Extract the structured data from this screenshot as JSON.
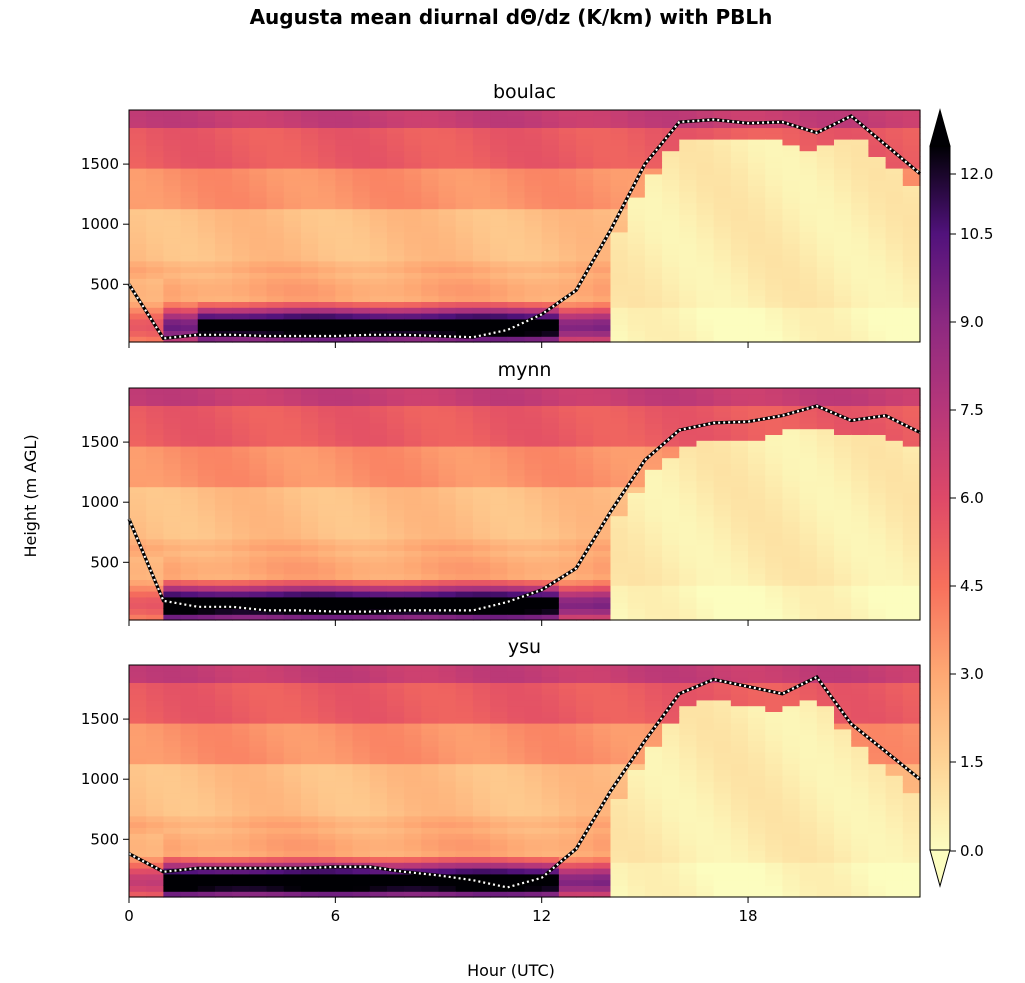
{
  "chart_data": {
    "type": "heatmap",
    "title": "Augusta mean diurnal dΘ/dz (K/km) with PBLh",
    "xlabel": "Hour (UTC)",
    "ylabel": "Height (m AGL)",
    "xlim": [
      0,
      23
    ],
    "ylim": [
      20,
      1950
    ],
    "x_ticks": [
      "0",
      "6",
      "12",
      "18"
    ],
    "x_tick_values": [
      0,
      6,
      12,
      18
    ],
    "y_ticks": [
      "500",
      "1000",
      "1500"
    ],
    "y_tick_values": [
      500,
      1000,
      1500
    ],
    "colormap": "magma_r",
    "colorbar": {
      "range": [
        0,
        12
      ],
      "extend": "both",
      "ticks": [
        "0.0",
        "1.5",
        "3.0",
        "4.5",
        "6.0",
        "7.5",
        "9.0",
        "10.5",
        "12.0"
      ],
      "tick_values": [
        0,
        1.5,
        3,
        4.5,
        6,
        7.5,
        9,
        10.5,
        12
      ]
    },
    "pblh_line_style": "white dotted over black",
    "panels": [
      {
        "name": "boulac",
        "pblh": {
          "hours": [
            0,
            1,
            2,
            3,
            4,
            5,
            6,
            7,
            8,
            9,
            10,
            11,
            12,
            13,
            14,
            15,
            16,
            17,
            18,
            19,
            20,
            21,
            22,
            23
          ],
          "values": [
            500,
            50,
            80,
            80,
            70,
            70,
            70,
            80,
            80,
            70,
            60,
            120,
            250,
            450,
            950,
            1500,
            1850,
            1870,
            1840,
            1850,
            1760,
            1900,
            1660,
            1420
          ]
        }
      },
      {
        "name": "mynn",
        "pblh": {
          "hours": [
            0,
            1,
            2,
            3,
            4,
            5,
            6,
            7,
            8,
            9,
            10,
            11,
            12,
            13,
            14,
            15,
            16,
            17,
            18,
            19,
            20,
            21,
            22,
            23
          ],
          "values": [
            860,
            180,
            130,
            130,
            100,
            100,
            90,
            90,
            100,
            100,
            100,
            170,
            270,
            450,
            920,
            1350,
            1600,
            1660,
            1670,
            1720,
            1800,
            1680,
            1720,
            1580
          ]
        }
      },
      {
        "name": "ysu",
        "pblh": {
          "hours": [
            0,
            1,
            2,
            3,
            4,
            5,
            6,
            7,
            8,
            9,
            10,
            11,
            12,
            13,
            14,
            15,
            16,
            17,
            18,
            19,
            20,
            21,
            22,
            23
          ],
          "values": [
            380,
            230,
            260,
            260,
            260,
            260,
            270,
            270,
            230,
            200,
            160,
            100,
            180,
            420,
            900,
            1320,
            1710,
            1830,
            1770,
            1710,
            1850,
            1460,
            1230,
            1000
          ]
        }
      }
    ]
  }
}
